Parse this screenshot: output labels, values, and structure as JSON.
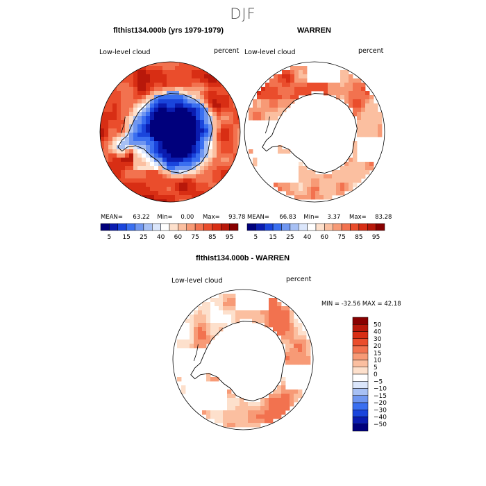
{
  "figure": {
    "title": "DJF"
  },
  "colors": {
    "scale": [
      "#00007c",
      "#0a1cb0",
      "#1a45dc",
      "#3a6ff0",
      "#6f96f0",
      "#a7c0f4",
      "#dbe6fb",
      "#ffffff",
      "#fde0cc",
      "#fbbfa0",
      "#f79a76",
      "#f2724f",
      "#ea4d2c",
      "#d82e14",
      "#b8180a",
      "#880000"
    ],
    "diff_scale": [
      "#00007c",
      "#0a1cb0",
      "#1a45dc",
      "#3a6ff0",
      "#6f96f0",
      "#a7c0f4",
      "#dbe6fb",
      "#ffffff",
      "#fde0cc",
      "#fbbfa0",
      "#f79a76",
      "#f2724f",
      "#ea4d2c",
      "#d82e14",
      "#b8180a",
      "#880000"
    ],
    "land_mask": "#ffffff",
    "coastline": "#000000"
  },
  "chart_data": [
    {
      "type": "heatmap",
      "projection": "south-polar-stereographic",
      "title": "flthist134.000b (yrs 1979-1979)",
      "left_label": "Low-level cloud",
      "right_label": "percent",
      "stats": {
        "mean_label": "MEAN=",
        "mean": "63.22",
        "min_label": "Min=",
        "min": "0.00",
        "max_label": "Max=",
        "max": "93.78"
      },
      "colorbar_ticks": [
        "5",
        "15",
        "25",
        "40",
        "60",
        "75",
        "85",
        "95"
      ],
      "levels": [
        5,
        10,
        15,
        20,
        25,
        30,
        40,
        50,
        60,
        70,
        75,
        80,
        85,
        90,
        95
      ],
      "field": {
        "ocean_value": 80,
        "antarctic_interior": 4,
        "antarctic_edge": 25,
        "masked_land": false
      }
    },
    {
      "type": "heatmap",
      "projection": "south-polar-stereographic",
      "title": "WARREN",
      "left_label": "Low-level cloud",
      "right_label": "percent",
      "stats": {
        "mean_label": "MEAN=",
        "mean": "66.83",
        "min_label": "Min=",
        "min": "3.37",
        "max_label": "Max=",
        "max": "83.28"
      },
      "colorbar_ticks": [
        "5",
        "15",
        "25",
        "40",
        "60",
        "75",
        "85",
        "95"
      ],
      "levels": [
        5,
        10,
        15,
        20,
        25,
        30,
        40,
        50,
        60,
        70,
        75,
        80,
        85,
        90,
        95
      ],
      "field": {
        "ocean_value": 70,
        "masked_land": true
      }
    },
    {
      "type": "heatmap",
      "projection": "south-polar-stereographic",
      "title": "flthist134.000b - WARREN",
      "left_label": "Low-level cloud",
      "right_label": "percent",
      "min_max": {
        "text": "MIN = -32.56 MAX =  42.18",
        "min": -32.56,
        "max": 42.18
      },
      "colorbar_ticks": [
        "50",
        "40",
        "30",
        "20",
        "15",
        "10",
        "5",
        "0",
        "−5",
        "−10",
        "−15",
        "−20",
        "−30",
        "−40",
        "−50"
      ],
      "levels": [
        -50,
        -40,
        -30,
        -20,
        -15,
        -10,
        -5,
        0,
        5,
        10,
        15,
        20,
        30,
        40,
        50
      ],
      "field": {
        "ocean_value": 8,
        "masked_land": true
      }
    }
  ]
}
